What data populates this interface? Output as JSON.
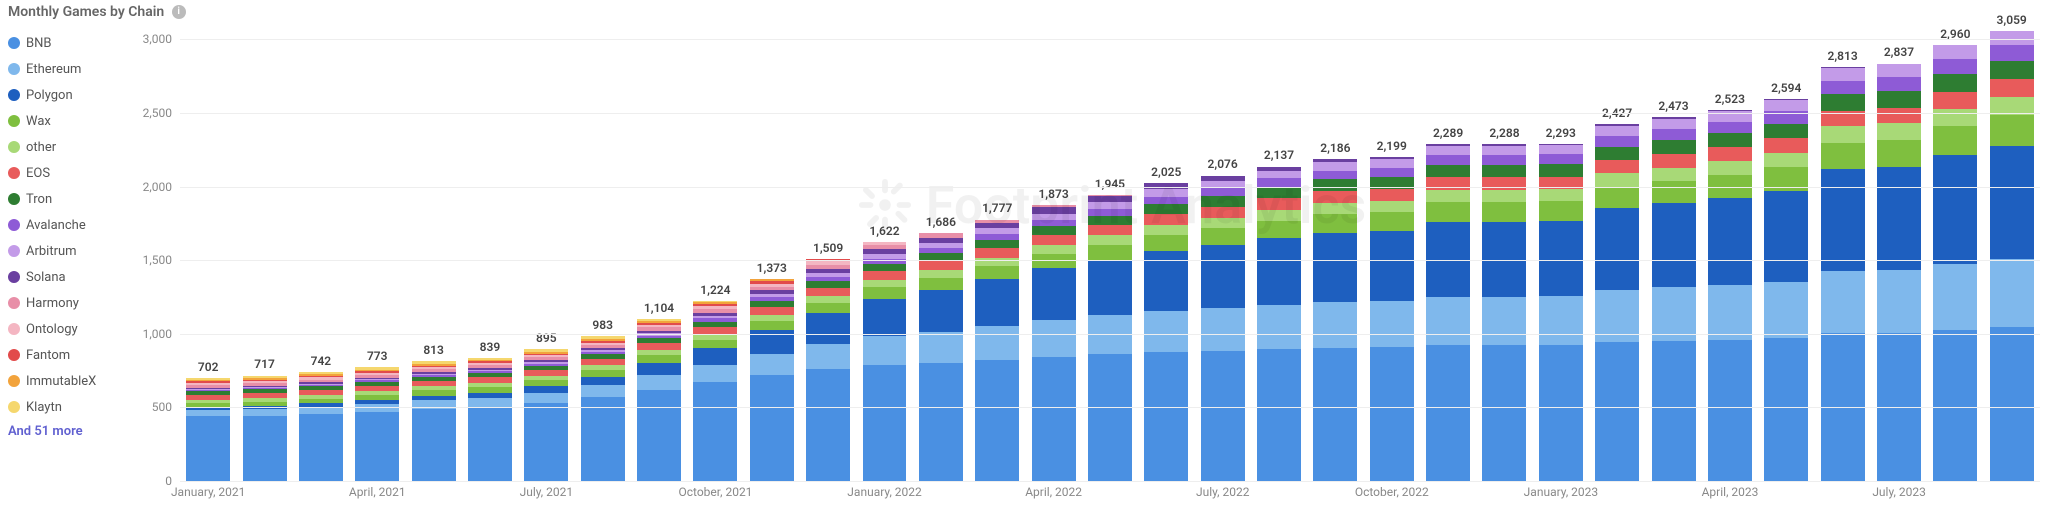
{
  "title": "Monthly Games by Chain",
  "legend_more": "And 51 more",
  "watermark_text": "Footprint Analytics",
  "y_axis": {
    "min": 0,
    "max": 3200,
    "ticks": [
      0,
      500,
      1000,
      1500,
      2000,
      2500,
      3000
    ],
    "labels": [
      "0",
      "500",
      "1,000",
      "1,500",
      "2,000",
      "2,500",
      "3,000"
    ]
  },
  "x_axis_labels": [
    {
      "idx": 0,
      "label": "January, 2021"
    },
    {
      "idx": 3,
      "label": "April, 2021"
    },
    {
      "idx": 6,
      "label": "July, 2021"
    },
    {
      "idx": 9,
      "label": "October, 2021"
    },
    {
      "idx": 12,
      "label": "January, 2022"
    },
    {
      "idx": 15,
      "label": "April, 2022"
    },
    {
      "idx": 18,
      "label": "July, 2022"
    },
    {
      "idx": 21,
      "label": "October, 2022"
    },
    {
      "idx": 24,
      "label": "January, 2023"
    },
    {
      "idx": 27,
      "label": "April, 2023"
    },
    {
      "idx": 30,
      "label": "July, 2023"
    }
  ],
  "series": [
    {
      "name": "BNB",
      "color": "#4a90e2"
    },
    {
      "name": "Ethereum",
      "color": "#7fb8ec"
    },
    {
      "name": "Polygon",
      "color": "#1e5fbf"
    },
    {
      "name": "Wax",
      "color": "#7fbf3f"
    },
    {
      "name": "other",
      "color": "#a8d977"
    },
    {
      "name": "EOS",
      "color": "#e85b5b"
    },
    {
      "name": "Tron",
      "color": "#2e7d32"
    },
    {
      "name": "Avalanche",
      "color": "#8e5bd6"
    },
    {
      "name": "Arbitrum",
      "color": "#c39be8"
    },
    {
      "name": "Solana",
      "color": "#6a3fa0"
    },
    {
      "name": "Harmony",
      "color": "#e88fa8"
    },
    {
      "name": "Ontology",
      "color": "#f4b6c2"
    },
    {
      "name": "Fantom",
      "color": "#e24b4b"
    },
    {
      "name": "ImmutableX",
      "color": "#f2a33c"
    },
    {
      "name": "Klaytn",
      "color": "#f5d76e"
    }
  ],
  "bars": [
    {
      "total": "702",
      "total_num": 702,
      "stack": [
        440,
        40,
        18,
        30,
        25,
        35,
        25,
        8,
        6,
        8,
        18,
        15,
        10,
        8,
        16
      ]
    },
    {
      "total": "717",
      "total_num": 717,
      "stack": [
        445,
        45,
        20,
        30,
        25,
        35,
        25,
        8,
        6,
        8,
        18,
        15,
        10,
        10,
        17
      ]
    },
    {
      "total": "742",
      "total_num": 742,
      "stack": [
        455,
        50,
        22,
        32,
        26,
        36,
        26,
        9,
        7,
        9,
        18,
        15,
        10,
        10,
        17
      ]
    },
    {
      "total": "773",
      "total_num": 773,
      "stack": [
        470,
        55,
        25,
        34,
        27,
        37,
        27,
        10,
        8,
        10,
        18,
        15,
        10,
        10,
        17
      ]
    },
    {
      "total": "813",
      "total_num": 813,
      "stack": [
        490,
        60,
        30,
        36,
        28,
        38,
        28,
        11,
        9,
        11,
        18,
        16,
        10,
        11,
        17
      ]
    },
    {
      "total": "839",
      "total_num": 839,
      "stack": [
        500,
        65,
        35,
        38,
        29,
        39,
        29,
        12,
        10,
        12,
        18,
        16,
        10,
        11,
        15
      ]
    },
    {
      "total": "895",
      "total_num": 895,
      "stack": [
        530,
        70,
        45,
        40,
        30,
        40,
        30,
        13,
        11,
        13,
        19,
        16,
        10,
        12,
        16
      ]
    },
    {
      "total": "983",
      "total_num": 983,
      "stack": [
        570,
        80,
        60,
        45,
        32,
        42,
        32,
        15,
        13,
        15,
        20,
        17,
        12,
        13,
        17
      ]
    },
    {
      "total": "1,104",
      "total_num": 1104,
      "stack": [
        620,
        100,
        85,
        50,
        35,
        45,
        35,
        18,
        16,
        18,
        22,
        18,
        12,
        14,
        16
      ]
    },
    {
      "total": "1,224",
      "total_num": 1224,
      "stack": [
        670,
        120,
        115,
        55,
        38,
        48,
        38,
        21,
        19,
        21,
        24,
        19,
        14,
        15,
        7
      ]
    },
    {
      "total": "1,373",
      "total_num": 1373,
      "stack": [
        720,
        145,
        160,
        62,
        42,
        52,
        42,
        25,
        23,
        25,
        26,
        20,
        15,
        16,
        0
      ]
    },
    {
      "total": "1,509",
      "total_num": 1509,
      "stack": [
        760,
        170,
        210,
        70,
        46,
        56,
        46,
        29,
        27,
        29,
        28,
        21,
        17,
        0,
        0
      ]
    },
    {
      "total": "1,622",
      "total_num": 1622,
      "stack": [
        790,
        195,
        255,
        78,
        50,
        60,
        50,
        33,
        31,
        33,
        30,
        17,
        0,
        0,
        0
      ]
    },
    {
      "total": "1,686",
      "total_num": 1686,
      "stack": [
        805,
        210,
        280,
        83,
        53,
        62,
        53,
        36,
        34,
        35,
        32,
        3,
        0,
        0,
        0
      ]
    },
    {
      "total": "1,777",
      "total_num": 1777,
      "stack": [
        825,
        230,
        315,
        90,
        57,
        65,
        57,
        40,
        38,
        38,
        22,
        0,
        0,
        0,
        0
      ]
    },
    {
      "total": "1,873",
      "total_num": 1873,
      "stack": [
        845,
        250,
        350,
        97,
        61,
        68,
        61,
        44,
        42,
        41,
        14,
        0,
        0,
        0,
        0
      ]
    },
    {
      "total": "1,945",
      "total_num": 1945,
      "stack": [
        860,
        265,
        378,
        103,
        64,
        70,
        64,
        47,
        45,
        44,
        5,
        0,
        0,
        0,
        0
      ]
    },
    {
      "total": "2,025",
      "total_num": 2025,
      "stack": [
        875,
        280,
        408,
        110,
        68,
        73,
        68,
        51,
        48,
        44,
        0,
        0,
        0,
        0,
        0
      ]
    },
    {
      "total": "2,076",
      "total_num": 2076,
      "stack": [
        885,
        290,
        428,
        115,
        71,
        75,
        71,
        54,
        51,
        36,
        0,
        0,
        0,
        0,
        0
      ]
    },
    {
      "total": "2,137",
      "total_num": 2137,
      "stack": [
        895,
        302,
        452,
        121,
        75,
        78,
        75,
        58,
        54,
        27,
        0,
        0,
        0,
        0,
        0
      ]
    },
    {
      "total": "2,186",
      "total_num": 2186,
      "stack": [
        905,
        312,
        470,
        126,
        78,
        80,
        78,
        61,
        57,
        19,
        0,
        0,
        0,
        0,
        0
      ]
    },
    {
      "total": "2,199",
      "total_num": 2199,
      "stack": [
        908,
        315,
        475,
        128,
        79,
        81,
        79,
        62,
        58,
        14,
        0,
        0,
        0,
        0,
        0
      ]
    },
    {
      "total": "2,289",
      "total_num": 2289,
      "stack": [
        922,
        330,
        508,
        135,
        83,
        85,
        83,
        67,
        63,
        13,
        0,
        0,
        0,
        0,
        0
      ]
    },
    {
      "total": "2,288",
      "total_num": 2288,
      "stack": [
        922,
        330,
        508,
        135,
        83,
        85,
        83,
        67,
        62,
        13,
        0,
        0,
        0,
        0,
        0
      ]
    },
    {
      "total": "2,293",
      "total_num": 2293,
      "stack": [
        923,
        331,
        510,
        136,
        84,
        85,
        84,
        67,
        63,
        10,
        0,
        0,
        0,
        0,
        0
      ]
    },
    {
      "total": "2,427",
      "total_num": 2427,
      "stack": [
        945,
        355,
        555,
        146,
        90,
        90,
        90,
        73,
        69,
        14,
        0,
        0,
        0,
        0,
        0
      ]
    },
    {
      "total": "2,473",
      "total_num": 2473,
      "stack": [
        952,
        363,
        572,
        150,
        93,
        92,
        93,
        76,
        71,
        11,
        0,
        0,
        0,
        0,
        0
      ]
    },
    {
      "total": "2,523",
      "total_num": 2523,
      "stack": [
        960,
        372,
        590,
        155,
        96,
        94,
        96,
        79,
        74,
        7,
        0,
        0,
        0,
        0,
        0
      ]
    },
    {
      "total": "2,594",
      "total_num": 2594,
      "stack": [
        970,
        385,
        615,
        162,
        100,
        97,
        100,
        83,
        78,
        4,
        0,
        0,
        0,
        0,
        0
      ]
    },
    {
      "total": "2,813",
      "total_num": 2813,
      "stack": [
        1005,
        420,
        692,
        182,
        111,
        106,
        111,
        94,
        88,
        4,
        0,
        0,
        0,
        0,
        0
      ]
    },
    {
      "total": "2,837",
      "total_num": 2837,
      "stack": [
        1008,
        425,
        700,
        185,
        113,
        107,
        113,
        95,
        89,
        2,
        0,
        0,
        0,
        0,
        0
      ]
    },
    {
      "total": "2,960",
      "total_num": 2960,
      "stack": [
        1028,
        445,
        740,
        197,
        120,
        113,
        120,
        102,
        95,
        0,
        0,
        0,
        0,
        0,
        0
      ]
    },
    {
      "total": "3,059",
      "total_num": 3059,
      "stack": [
        1044,
        462,
        773,
        207,
        126,
        117,
        126,
        107,
        97,
        0,
        0,
        0,
        0,
        0,
        0
      ]
    }
  ],
  "plot": {
    "background": "#ffffff",
    "grid_color": "#eeeeee",
    "bar_width_pct": 78
  }
}
